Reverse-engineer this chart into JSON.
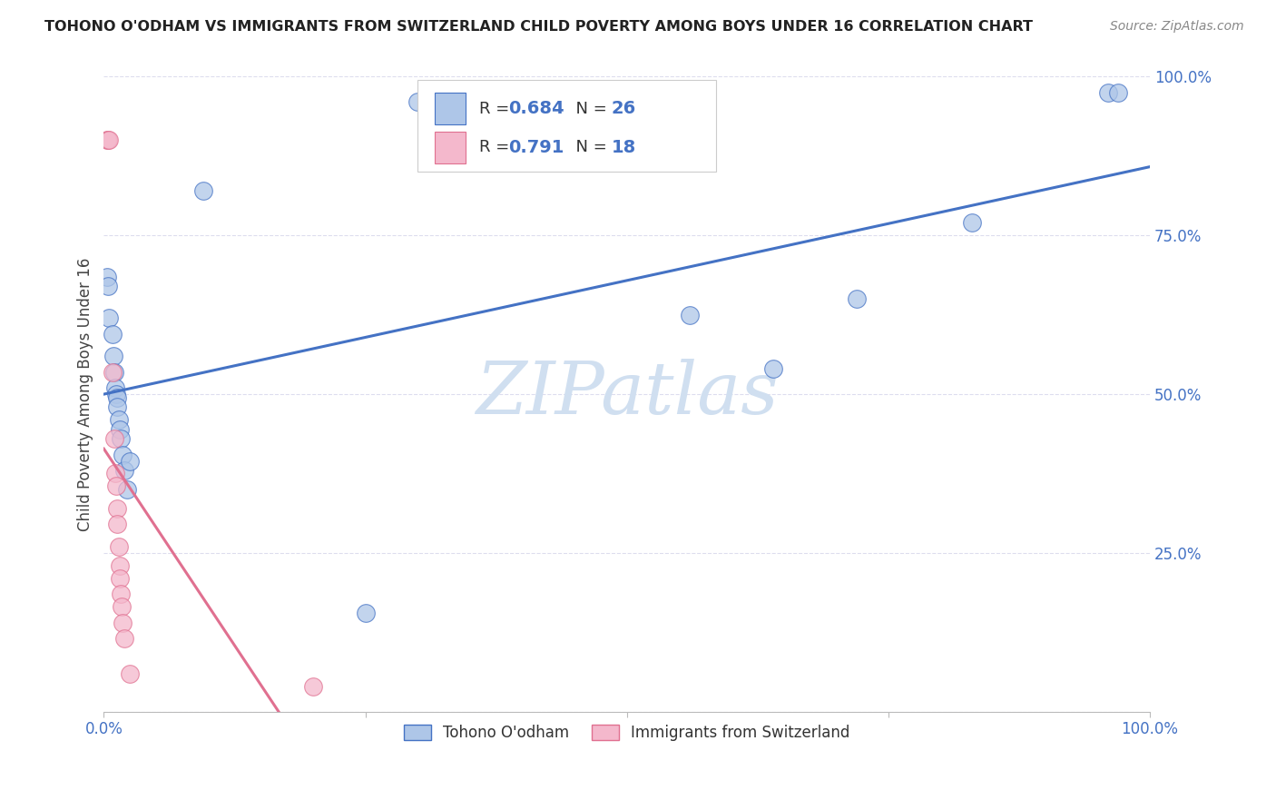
{
  "title": "TOHONO O'ODHAM VS IMMIGRANTS FROM SWITZERLAND CHILD POVERTY AMONG BOYS UNDER 16 CORRELATION CHART",
  "source": "Source: ZipAtlas.com",
  "ylabel": "Child Poverty Among Boys Under 16",
  "watermark": "ZIPatlas",
  "blue_points": [
    [
      0.003,
      0.685
    ],
    [
      0.004,
      0.67
    ],
    [
      0.005,
      0.62
    ],
    [
      0.008,
      0.595
    ],
    [
      0.009,
      0.56
    ],
    [
      0.01,
      0.535
    ],
    [
      0.011,
      0.51
    ],
    [
      0.012,
      0.5
    ],
    [
      0.013,
      0.495
    ],
    [
      0.013,
      0.48
    ],
    [
      0.014,
      0.46
    ],
    [
      0.015,
      0.445
    ],
    [
      0.016,
      0.43
    ],
    [
      0.018,
      0.405
    ],
    [
      0.02,
      0.38
    ],
    [
      0.022,
      0.35
    ],
    [
      0.025,
      0.395
    ],
    [
      0.095,
      0.82
    ],
    [
      0.25,
      0.155
    ],
    [
      0.3,
      0.96
    ],
    [
      0.56,
      0.625
    ],
    [
      0.64,
      0.54
    ],
    [
      0.72,
      0.65
    ],
    [
      0.83,
      0.77
    ],
    [
      0.96,
      0.975
    ],
    [
      0.97,
      0.975
    ]
  ],
  "pink_points": [
    [
      0.003,
      0.9
    ],
    [
      0.004,
      0.9
    ],
    [
      0.005,
      0.9
    ],
    [
      0.008,
      0.535
    ],
    [
      0.01,
      0.43
    ],
    [
      0.011,
      0.375
    ],
    [
      0.012,
      0.355
    ],
    [
      0.013,
      0.32
    ],
    [
      0.013,
      0.295
    ],
    [
      0.014,
      0.26
    ],
    [
      0.015,
      0.23
    ],
    [
      0.015,
      0.21
    ],
    [
      0.016,
      0.185
    ],
    [
      0.017,
      0.165
    ],
    [
      0.018,
      0.14
    ],
    [
      0.02,
      0.115
    ],
    [
      0.025,
      0.06
    ],
    [
      0.2,
      0.04
    ]
  ],
  "blue_R": 0.684,
  "blue_N": 26,
  "pink_R": 0.791,
  "pink_N": 18,
  "blue_line_color": "#4472C4",
  "pink_line_color": "#E07090",
  "blue_dot_facecolor": "#AEC6E8",
  "pink_dot_facecolor": "#F4B8CC",
  "title_color": "#222222",
  "source_color": "#888888",
  "axis_label_color": "#444444",
  "tick_color": "#4472C4",
  "watermark_color": "#D0DFF0",
  "grid_color": "#DDDDEE",
  "xlim": [
    0.0,
    1.0
  ],
  "ylim": [
    0.0,
    1.0
  ]
}
